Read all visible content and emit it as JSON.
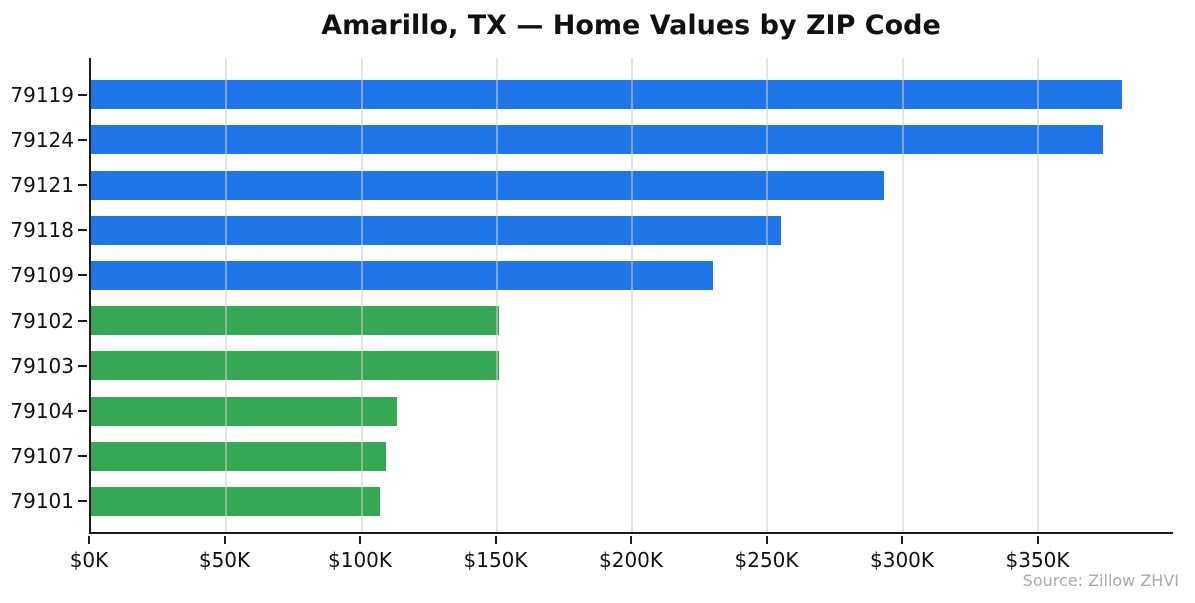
{
  "title": "Amarillo, TX — Home Values by ZIP Code",
  "source_note": "Source: Zillow ZHVI",
  "colors": {
    "bar_blue": "#1F76E8",
    "bar_green": "#34A853",
    "grid": "#E5E5E5",
    "axis": "#1A1A1A",
    "text": "#111111",
    "source_text": "#AAAAAA"
  },
  "chart_data": {
    "type": "bar",
    "orientation": "horizontal",
    "title": "Amarillo, TX — Home Values by ZIP Code",
    "categories": [
      "79119",
      "79124",
      "79121",
      "79118",
      "79109",
      "79102",
      "79103",
      "79104",
      "79107",
      "79101"
    ],
    "values": [
      381,
      374,
      293,
      255,
      230,
      151,
      151,
      113,
      109,
      107
    ],
    "value_units": "USD thousands (ZHVI home value)",
    "bar_colors": [
      "#1F76E8",
      "#1F76E8",
      "#1F76E8",
      "#1F76E8",
      "#1F76E8",
      "#34A853",
      "#34A853",
      "#34A853",
      "#34A853",
      "#34A853"
    ],
    "xlabel": "",
    "ylabel": "",
    "xlim": [
      0,
      400
    ],
    "x_tick_values": [
      0,
      50,
      100,
      150,
      200,
      250,
      300,
      350
    ],
    "x_tick_labels": [
      "$0K",
      "$50K",
      "$100K",
      "$150K",
      "$200K",
      "$250K",
      "$300K",
      "$350K"
    ],
    "grid": "vertical gridlines at x ticks",
    "legend_position": "none",
    "annotation": "Source: Zillow ZHVI"
  }
}
